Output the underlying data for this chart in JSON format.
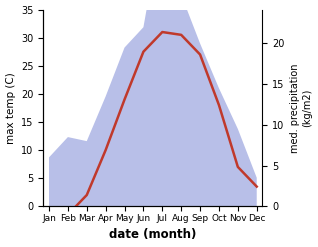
{
  "months": [
    "Jan",
    "Feb",
    "Mar",
    "Apr",
    "May",
    "Jun",
    "Jul",
    "Aug",
    "Sep",
    "Oct",
    "Nov",
    "Dec"
  ],
  "temperature": [
    -2.0,
    -1.5,
    2.0,
    10.0,
    19.0,
    27.5,
    31.0,
    30.5,
    27.0,
    18.0,
    7.0,
    3.5
  ],
  "precipitation": [
    6.0,
    8.5,
    8.0,
    13.5,
    19.5,
    22.0,
    35.0,
    26.0,
    20.0,
    14.5,
    9.5,
    3.5
  ],
  "temp_color": "#c0392b",
  "precip_fill_color": "#b8bfe8",
  "temp_ylim": [
    0,
    35
  ],
  "precip_ylim_max": 24.17,
  "ylabel_left": "max temp (C)",
  "ylabel_right": "med. precipitation\n(kg/m2)",
  "xlabel": "date (month)",
  "background_color": "#ffffff",
  "temp_linewidth": 1.8,
  "precip_right_ticks": [
    0,
    5,
    10,
    15,
    20
  ],
  "temp_left_ticks": [
    0,
    5,
    10,
    15,
    20,
    25,
    30,
    35
  ]
}
